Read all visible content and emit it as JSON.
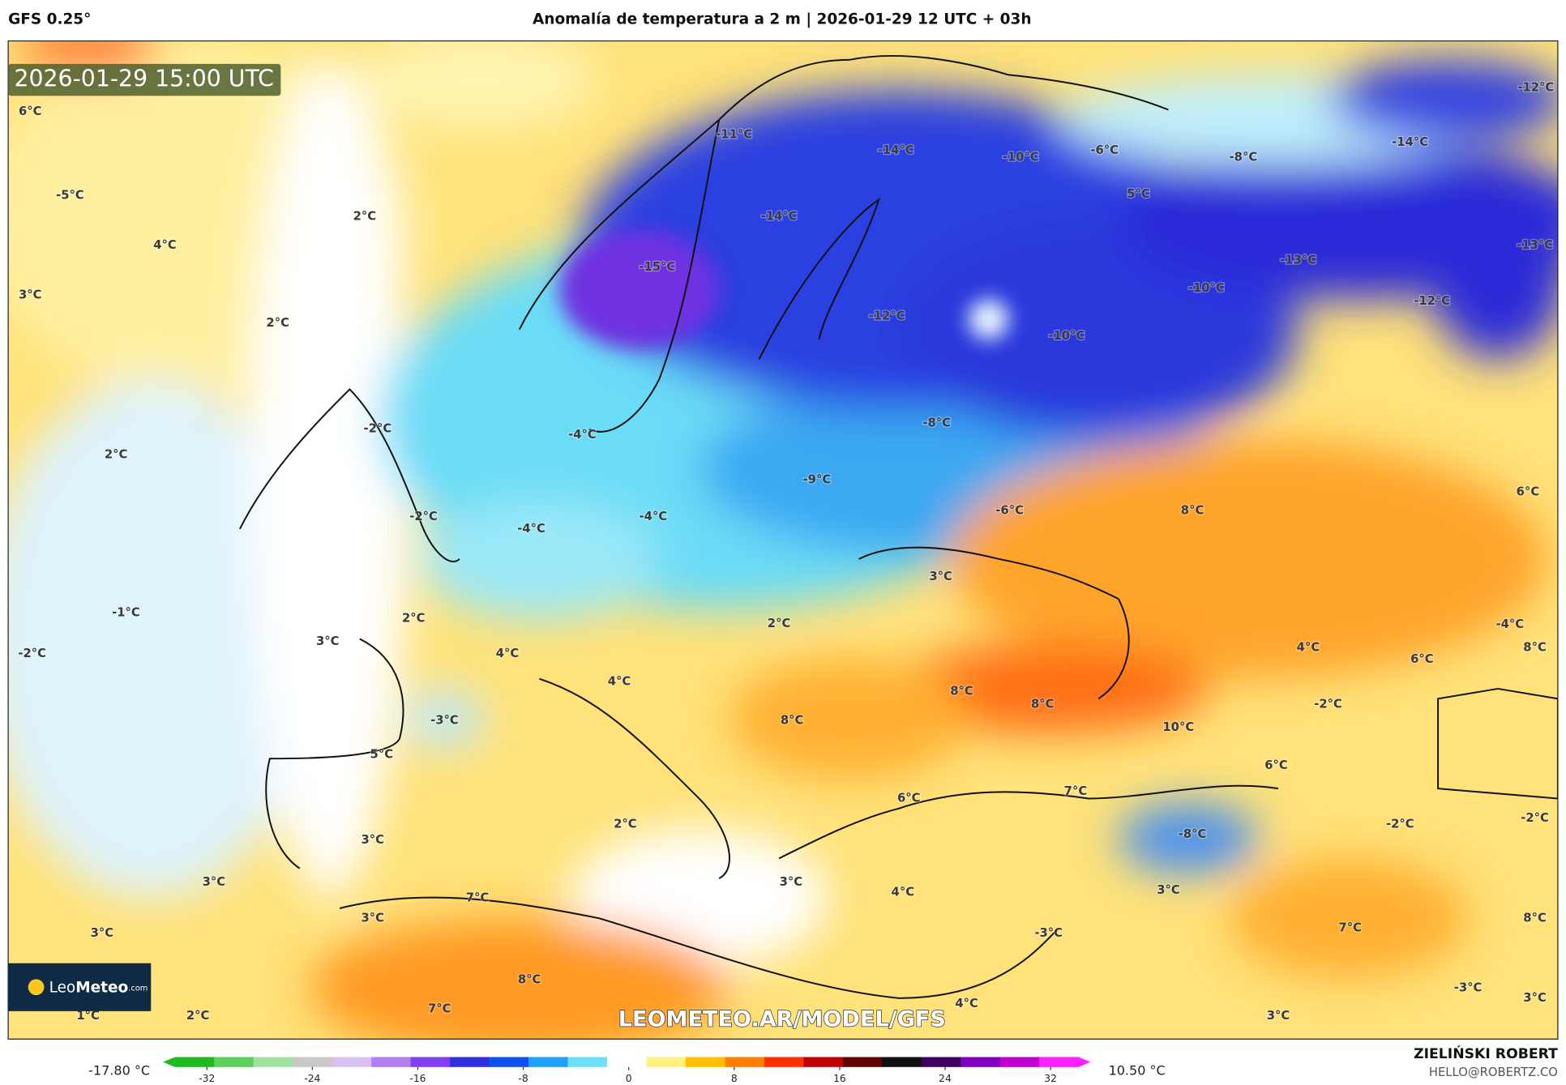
{
  "header": {
    "model": "GFS 0.25°",
    "title": "Anomalía de temperatura a 2 m | 2026-01-29 12 UTC + 03h"
  },
  "map": {
    "timestamp": "2026-01-29 15:00 UTC",
    "labels": [
      "6°C",
      "-5°C",
      "4°C",
      "3°C",
      "2°C",
      "2°C",
      "-11°C",
      "-14°C",
      "-10°C",
      "-6°C",
      "-8°C",
      "-14°C",
      "-12°C",
      "5°C",
      "-14°C",
      "-15°C",
      "-13°C",
      "-13°C",
      "-10°C",
      "-12°C",
      "-12°C",
      "-10°C",
      "-2°C",
      "-4°C",
      "-8°C",
      "2°C",
      "-9°C",
      "-2°C",
      "-4°C",
      "-4°C",
      "-6°C",
      "8°C",
      "6°C",
      "3°C",
      "-1°C",
      "2°C",
      "3°C",
      "4°C",
      "2°C",
      "-2°C",
      "4°C",
      "6°C",
      "-4°C",
      "8°C",
      "4°C",
      "8°C",
      "8°C",
      "-2°C",
      "-3°C",
      "8°C",
      "10°C",
      "6°C",
      "5°C",
      "7°C",
      "6°C",
      "2°C",
      "-2°C",
      "-2°C",
      "3°C",
      "-8°C",
      "3°C",
      "3°C",
      "4°C",
      "3°C",
      "3°C",
      "7°C",
      "3°C",
      "8°C",
      "-3°C",
      "7°C",
      "8°C",
      "-3°C",
      "7°C",
      "4°C",
      "3°C",
      "1°C",
      "2°C",
      "3°C"
    ],
    "logo": {
      "light": "Leo",
      "bold": "Meteo",
      "domain": ".com"
    },
    "watermark": "LEOMETEO.AR/MODEL/GFS"
  },
  "colorbar": {
    "min_label": "-17.80 °C",
    "max_label": "10.50 °C",
    "ticks": [
      -32,
      -24,
      -16,
      -8,
      0,
      8,
      16,
      24,
      32
    ],
    "colors": [
      "#1fb81f",
      "#5fd05f",
      "#a0e0a0",
      "#c8c8c8",
      "#d8c0f0",
      "#b080f0",
      "#8040f0",
      "#3030e0",
      "#1050f0",
      "#20a0f8",
      "#70e0f8",
      "#ffffff",
      "#fff080",
      "#ffc000",
      "#ff8000",
      "#ff3000",
      "#c00000",
      "#600000",
      "#101010",
      "#400060",
      "#8000c0",
      "#c000d0",
      "#ff20ff"
    ]
  },
  "credit": {
    "name": "ZIELIŃSKI ROBERT",
    "email": "HELLO@ROBERTZ.CO"
  }
}
